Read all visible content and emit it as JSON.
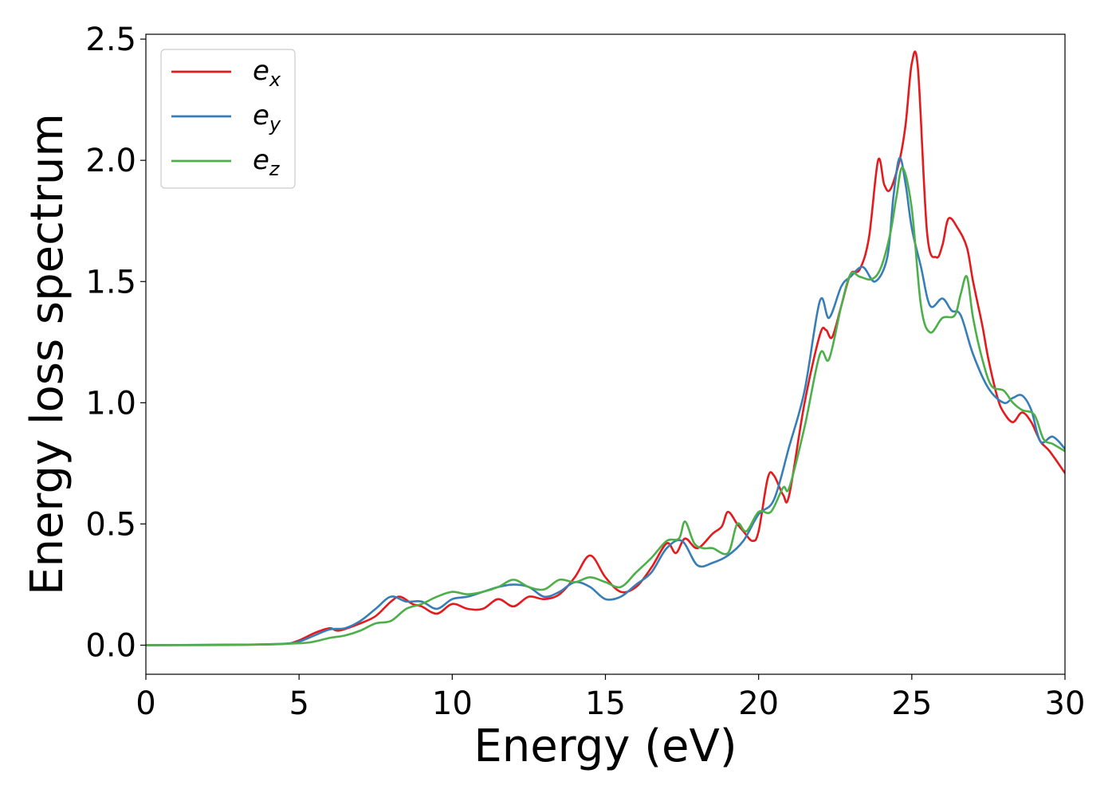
{
  "chart_data": {
    "type": "line",
    "xlabel": "Energy (eV)",
    "ylabel": "Energy loss spectrum",
    "xlim": [
      0,
      30
    ],
    "ylim": [
      -0.12,
      2.52
    ],
    "xticks": [
      0,
      5,
      10,
      15,
      20,
      25,
      30
    ],
    "xtick_labels": [
      "0",
      "5",
      "10",
      "15",
      "20",
      "25",
      "30"
    ],
    "yticks": [
      0.0,
      0.5,
      1.0,
      1.5,
      2.0,
      2.5
    ],
    "ytick_labels": [
      "0.0",
      "0.5",
      "1.0",
      "1.5",
      "2.0",
      "2.5"
    ],
    "grid": false,
    "legend_placement": "top-left",
    "series": [
      {
        "name": "e_x",
        "label_base": "e",
        "label_sub": "x",
        "color": "#e41a1c",
        "points": [
          [
            0,
            0
          ],
          [
            3,
            0.002
          ],
          [
            4.5,
            0.005
          ],
          [
            5,
            0.02
          ],
          [
            5.5,
            0.05
          ],
          [
            6,
            0.07
          ],
          [
            6.3,
            0.06
          ],
          [
            7,
            0.09
          ],
          [
            7.5,
            0.12
          ],
          [
            8,
            0.18
          ],
          [
            8.3,
            0.2
          ],
          [
            8.7,
            0.17
          ],
          [
            9,
            0.16
          ],
          [
            9.5,
            0.13
          ],
          [
            10,
            0.17
          ],
          [
            10.5,
            0.15
          ],
          [
            11,
            0.15
          ],
          [
            11.5,
            0.19
          ],
          [
            12,
            0.16
          ],
          [
            12.5,
            0.2
          ],
          [
            13,
            0.19
          ],
          [
            13.5,
            0.21
          ],
          [
            14,
            0.28
          ],
          [
            14.5,
            0.37
          ],
          [
            15,
            0.28
          ],
          [
            15.5,
            0.22
          ],
          [
            16,
            0.24
          ],
          [
            16.5,
            0.32
          ],
          [
            17,
            0.42
          ],
          [
            17.3,
            0.38
          ],
          [
            17.6,
            0.44
          ],
          [
            18,
            0.4
          ],
          [
            18.5,
            0.46
          ],
          [
            18.8,
            0.49
          ],
          [
            19,
            0.55
          ],
          [
            19.3,
            0.5
          ],
          [
            19.5,
            0.47
          ],
          [
            19.8,
            0.43
          ],
          [
            20,
            0.47
          ],
          [
            20.3,
            0.69
          ],
          [
            20.5,
            0.7
          ],
          [
            20.8,
            0.62
          ],
          [
            21,
            0.62
          ],
          [
            21.5,
            1.0
          ],
          [
            22,
            1.28
          ],
          [
            22.2,
            1.3
          ],
          [
            22.4,
            1.27
          ],
          [
            22.7,
            1.4
          ],
          [
            23,
            1.53
          ],
          [
            23.3,
            1.55
          ],
          [
            23.6,
            1.68
          ],
          [
            23.9,
            2.0
          ],
          [
            24.1,
            1.9
          ],
          [
            24.3,
            1.88
          ],
          [
            24.6,
            2.0
          ],
          [
            24.8,
            2.15
          ],
          [
            25,
            2.4
          ],
          [
            25.2,
            2.38
          ],
          [
            25.5,
            1.7
          ],
          [
            25.8,
            1.6
          ],
          [
            26,
            1.65
          ],
          [
            26.2,
            1.76
          ],
          [
            26.5,
            1.72
          ],
          [
            26.8,
            1.64
          ],
          [
            27,
            1.5
          ],
          [
            27.3,
            1.32
          ],
          [
            27.5,
            1.18
          ],
          [
            27.8,
            1.02
          ],
          [
            28,
            0.96
          ],
          [
            28.3,
            0.92
          ],
          [
            28.6,
            0.96
          ],
          [
            28.9,
            0.92
          ],
          [
            29.2,
            0.84
          ],
          [
            29.5,
            0.8
          ],
          [
            30,
            0.71
          ]
        ]
      },
      {
        "name": "e_y",
        "label_base": "e",
        "label_sub": "y",
        "color": "#377eb8",
        "points": [
          [
            0,
            0
          ],
          [
            3,
            0.002
          ],
          [
            4.5,
            0.006
          ],
          [
            5,
            0.015
          ],
          [
            5.5,
            0.04
          ],
          [
            6,
            0.065
          ],
          [
            6.5,
            0.07
          ],
          [
            7,
            0.1
          ],
          [
            7.5,
            0.15
          ],
          [
            8,
            0.2
          ],
          [
            8.5,
            0.18
          ],
          [
            9,
            0.18
          ],
          [
            9.5,
            0.15
          ],
          [
            10,
            0.19
          ],
          [
            10.5,
            0.2
          ],
          [
            11,
            0.22
          ],
          [
            11.5,
            0.24
          ],
          [
            12,
            0.25
          ],
          [
            12.5,
            0.24
          ],
          [
            13,
            0.2
          ],
          [
            13.5,
            0.22
          ],
          [
            14,
            0.26
          ],
          [
            14.5,
            0.24
          ],
          [
            15,
            0.19
          ],
          [
            15.5,
            0.2
          ],
          [
            16,
            0.25
          ],
          [
            16.5,
            0.3
          ],
          [
            17,
            0.4
          ],
          [
            17.5,
            0.43
          ],
          [
            18,
            0.33
          ],
          [
            18.5,
            0.34
          ],
          [
            19,
            0.37
          ],
          [
            19.5,
            0.43
          ],
          [
            20,
            0.54
          ],
          [
            20.5,
            0.6
          ],
          [
            21,
            0.82
          ],
          [
            21.5,
            1.05
          ],
          [
            22,
            1.42
          ],
          [
            22.3,
            1.35
          ],
          [
            22.7,
            1.48
          ],
          [
            23,
            1.52
          ],
          [
            23.4,
            1.56
          ],
          [
            23.8,
            1.5
          ],
          [
            24.2,
            1.6
          ],
          [
            24.4,
            1.85
          ],
          [
            24.6,
            2.01
          ],
          [
            24.8,
            1.9
          ],
          [
            25,
            1.72
          ],
          [
            25.3,
            1.56
          ],
          [
            25.6,
            1.4
          ],
          [
            26,
            1.43
          ],
          [
            26.3,
            1.38
          ],
          [
            26.6,
            1.36
          ],
          [
            27,
            1.2
          ],
          [
            27.5,
            1.06
          ],
          [
            28,
            1.0
          ],
          [
            28.3,
            1.02
          ],
          [
            28.6,
            1.03
          ],
          [
            28.9,
            0.97
          ],
          [
            29.2,
            0.84
          ],
          [
            29.6,
            0.86
          ],
          [
            30,
            0.81
          ]
        ]
      },
      {
        "name": "e_z",
        "label_base": "e",
        "label_sub": "z",
        "color": "#4daf4a",
        "points": [
          [
            0,
            0
          ],
          [
            3,
            0.001
          ],
          [
            5,
            0.008
          ],
          [
            5.5,
            0.015
          ],
          [
            6,
            0.03
          ],
          [
            6.5,
            0.04
          ],
          [
            7,
            0.06
          ],
          [
            7.5,
            0.09
          ],
          [
            8,
            0.1
          ],
          [
            8.5,
            0.15
          ],
          [
            9,
            0.17
          ],
          [
            9.5,
            0.2
          ],
          [
            10,
            0.22
          ],
          [
            10.5,
            0.21
          ],
          [
            11,
            0.22
          ],
          [
            11.5,
            0.24
          ],
          [
            12,
            0.27
          ],
          [
            12.5,
            0.24
          ],
          [
            13,
            0.23
          ],
          [
            13.5,
            0.27
          ],
          [
            14,
            0.26
          ],
          [
            14.5,
            0.28
          ],
          [
            15,
            0.26
          ],
          [
            15.5,
            0.24
          ],
          [
            16,
            0.3
          ],
          [
            16.5,
            0.36
          ],
          [
            17,
            0.43
          ],
          [
            17.4,
            0.44
          ],
          [
            17.6,
            0.51
          ],
          [
            17.9,
            0.42
          ],
          [
            18.2,
            0.4
          ],
          [
            18.5,
            0.4
          ],
          [
            19,
            0.38
          ],
          [
            19.3,
            0.5
          ],
          [
            19.6,
            0.47
          ],
          [
            20,
            0.55
          ],
          [
            20.4,
            0.55
          ],
          [
            20.8,
            0.65
          ],
          [
            21,
            0.65
          ],
          [
            21.5,
            0.9
          ],
          [
            22,
            1.2
          ],
          [
            22.3,
            1.18
          ],
          [
            22.7,
            1.4
          ],
          [
            23,
            1.53
          ],
          [
            23.3,
            1.52
          ],
          [
            23.7,
            1.51
          ],
          [
            24,
            1.56
          ],
          [
            24.3,
            1.7
          ],
          [
            24.5,
            1.85
          ],
          [
            24.7,
            1.97
          ],
          [
            25,
            1.8
          ],
          [
            25.3,
            1.4
          ],
          [
            25.6,
            1.29
          ],
          [
            26,
            1.35
          ],
          [
            26.4,
            1.36
          ],
          [
            26.6,
            1.45
          ],
          [
            26.8,
            1.52
          ],
          [
            27,
            1.35
          ],
          [
            27.3,
            1.18
          ],
          [
            27.6,
            1.07
          ],
          [
            28,
            1.05
          ],
          [
            28.3,
            1.0
          ],
          [
            28.6,
            0.97
          ],
          [
            29,
            0.95
          ],
          [
            29.3,
            0.85
          ],
          [
            29.6,
            0.83
          ],
          [
            30,
            0.8
          ]
        ]
      }
    ]
  }
}
